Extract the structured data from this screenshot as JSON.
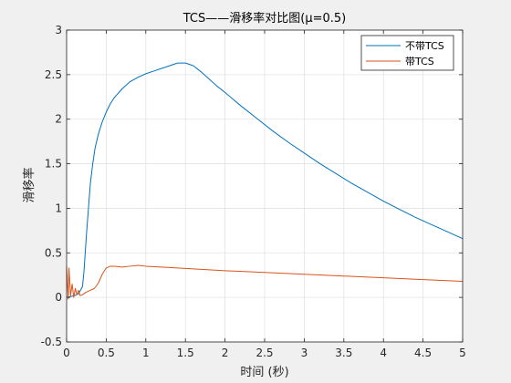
{
  "chart_data": {
    "type": "line",
    "title": "TCS——滑移率对比图(μ=0.5)",
    "xlabel": "时间 (秒)",
    "ylabel": "滑移率",
    "xlim": [
      0,
      5
    ],
    "ylim": [
      -0.5,
      3
    ],
    "xticks": [
      "0",
      "0.5",
      "1",
      "1.5",
      "2",
      "2.5",
      "3",
      "3.5",
      "4",
      "4.5",
      "5"
    ],
    "yticks": [
      "-0.5",
      "0",
      "0.5",
      "1",
      "1.5",
      "2",
      "2.5",
      "3"
    ],
    "grid": true,
    "legend_position": "top-right",
    "series": [
      {
        "name": "不带TCS",
        "color": "#0072BD",
        "x": [
          0,
          0.05,
          0.1,
          0.15,
          0.2,
          0.22,
          0.25,
          0.28,
          0.3,
          0.33,
          0.36,
          0.4,
          0.45,
          0.5,
          0.55,
          0.6,
          0.7,
          0.8,
          0.9,
          1.0,
          1.1,
          1.2,
          1.3,
          1.4,
          1.5,
          1.6,
          1.7,
          1.8,
          1.9,
          2.0,
          2.2,
          2.4,
          2.6,
          2.8,
          3.0,
          3.2,
          3.4,
          3.6,
          3.8,
          4.0,
          4.2,
          4.4,
          4.6,
          4.8,
          5.0
        ],
        "y": [
          0.0,
          0.01,
          0.02,
          0.04,
          0.12,
          0.3,
          0.7,
          1.05,
          1.28,
          1.5,
          1.68,
          1.83,
          1.97,
          2.08,
          2.17,
          2.24,
          2.34,
          2.42,
          2.47,
          2.51,
          2.54,
          2.57,
          2.6,
          2.63,
          2.63,
          2.6,
          2.53,
          2.45,
          2.37,
          2.3,
          2.15,
          2.01,
          1.87,
          1.74,
          1.62,
          1.5,
          1.39,
          1.28,
          1.18,
          1.08,
          0.99,
          0.9,
          0.82,
          0.74,
          0.66
        ]
      },
      {
        "name": "带TCS",
        "color": "#D95319",
        "x": [
          0,
          0.02,
          0.03,
          0.05,
          0.07,
          0.09,
          0.11,
          0.13,
          0.15,
          0.17,
          0.2,
          0.25,
          0.3,
          0.35,
          0.4,
          0.45,
          0.5,
          0.55,
          0.6,
          0.7,
          0.8,
          0.9,
          1.0,
          1.2,
          1.4,
          1.6,
          1.8,
          2.0,
          2.5,
          3.0,
          3.5,
          4.0,
          4.5,
          5.0
        ],
        "y": [
          0.35,
          -0.02,
          0.33,
          0.02,
          0.15,
          0.0,
          0.1,
          0.03,
          0.08,
          0.02,
          0.03,
          0.06,
          0.08,
          0.1,
          0.16,
          0.26,
          0.33,
          0.35,
          0.35,
          0.34,
          0.35,
          0.36,
          0.35,
          0.34,
          0.33,
          0.32,
          0.31,
          0.3,
          0.28,
          0.26,
          0.24,
          0.22,
          0.2,
          0.18
        ]
      }
    ]
  }
}
